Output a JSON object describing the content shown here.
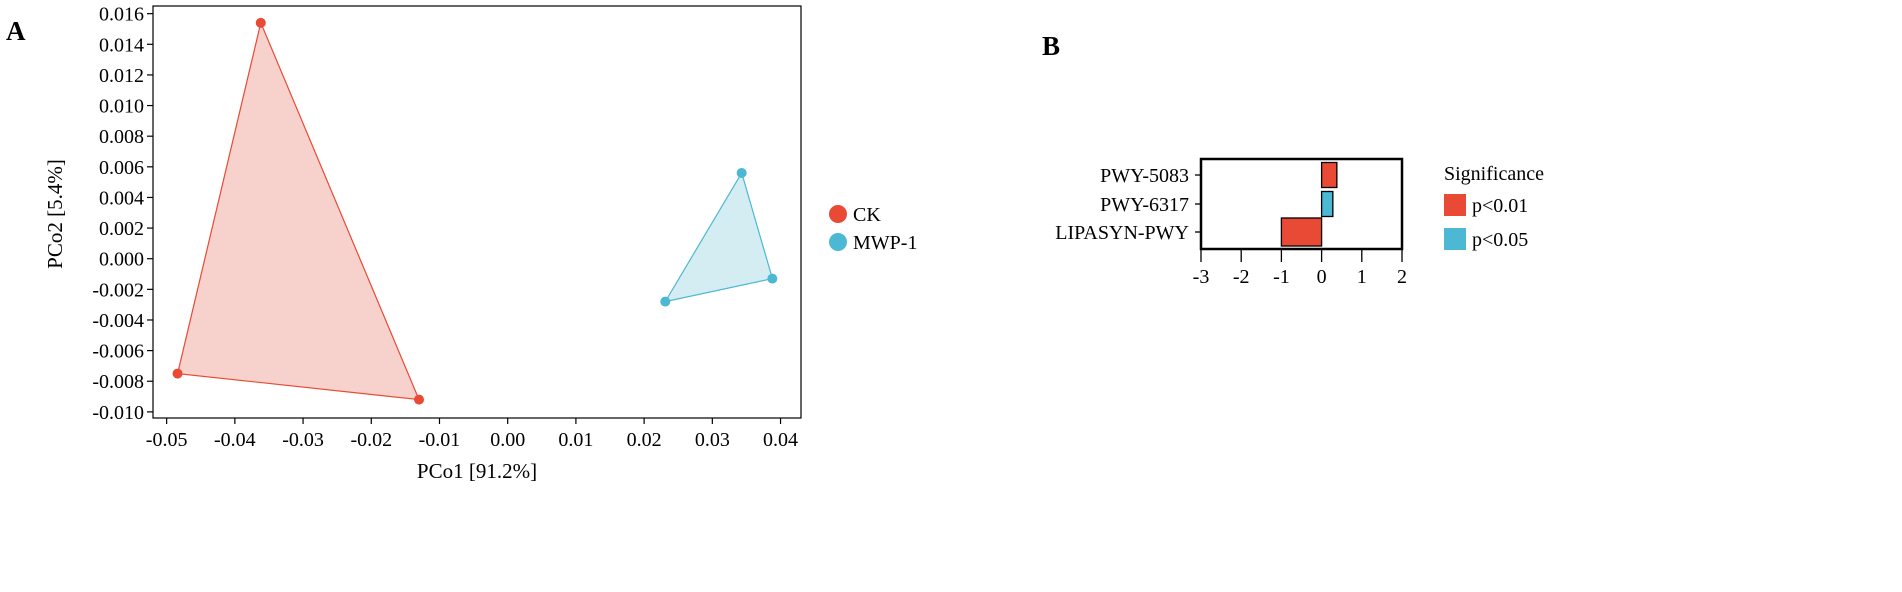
{
  "chart_data": [
    {
      "panel_label": "A",
      "type": "scatter",
      "xlabel": "PCo1 [91.2%]",
      "ylabel": "PCo2 [5.4%]",
      "xlim": [
        -0.052,
        0.043
      ],
      "ylim": [
        -0.0104,
        0.0165
      ],
      "xticks": [
        -0.05,
        -0.04,
        -0.03,
        -0.02,
        -0.01,
        0.0,
        0.01,
        0.02,
        0.03,
        0.04
      ],
      "xtick_labels": [
        "-0.05",
        "-0.04",
        "-0.03",
        "-0.02",
        "-0.01",
        "0.00",
        "0.01",
        "0.02",
        "0.03",
        "0.04"
      ],
      "yticks": [
        -0.01,
        -0.008,
        -0.006,
        -0.004,
        -0.002,
        0.0,
        0.002,
        0.004,
        0.006,
        0.008,
        0.01,
        0.012,
        0.014,
        0.016
      ],
      "ytick_labels": [
        "-0.010",
        "-0.008",
        "-0.006",
        "-0.004",
        "-0.002",
        "0.000",
        "0.002",
        "0.004",
        "0.006",
        "0.008",
        "0.010",
        "0.012",
        "0.014",
        "0.016"
      ],
      "grid": false,
      "legend_position": "right",
      "series": [
        {
          "name": "CK",
          "color": "#e84a35",
          "fill": "#f6cac3",
          "points": [
            {
              "x": -0.0362,
              "y": 0.0154
            },
            {
              "x": -0.0484,
              "y": -0.0075
            },
            {
              "x": -0.013,
              "y": -0.0092
            }
          ]
        },
        {
          "name": "MWP-1",
          "color": "#4cb8d3",
          "fill": "#cdeaf1",
          "points": [
            {
              "x": 0.0343,
              "y": 0.0056
            },
            {
              "x": 0.0231,
              "y": -0.0028
            },
            {
              "x": 0.0388,
              "y": -0.0013
            }
          ]
        }
      ]
    },
    {
      "panel_label": "B",
      "type": "bar",
      "orientation": "horizontal",
      "categories": [
        "PWY-5083",
        "PWY-6317",
        "LIPASYN-PWY"
      ],
      "values": [
        0.38,
        0.28,
        -1.0
      ],
      "significance": [
        "p<0.01",
        "p<0.05",
        "p<0.01"
      ],
      "xlim": [
        -3,
        2
      ],
      "xticks": [
        -3,
        -2,
        -1,
        0,
        1,
        2
      ],
      "xtick_labels": [
        "-3",
        "-2",
        "-1",
        "0",
        "1",
        "2"
      ],
      "legend_title": "Significance",
      "legend": [
        {
          "label": "p<0.01",
          "color": "#e84a35"
        },
        {
          "label": "p<0.05",
          "color": "#4cb8d3"
        }
      ]
    }
  ]
}
